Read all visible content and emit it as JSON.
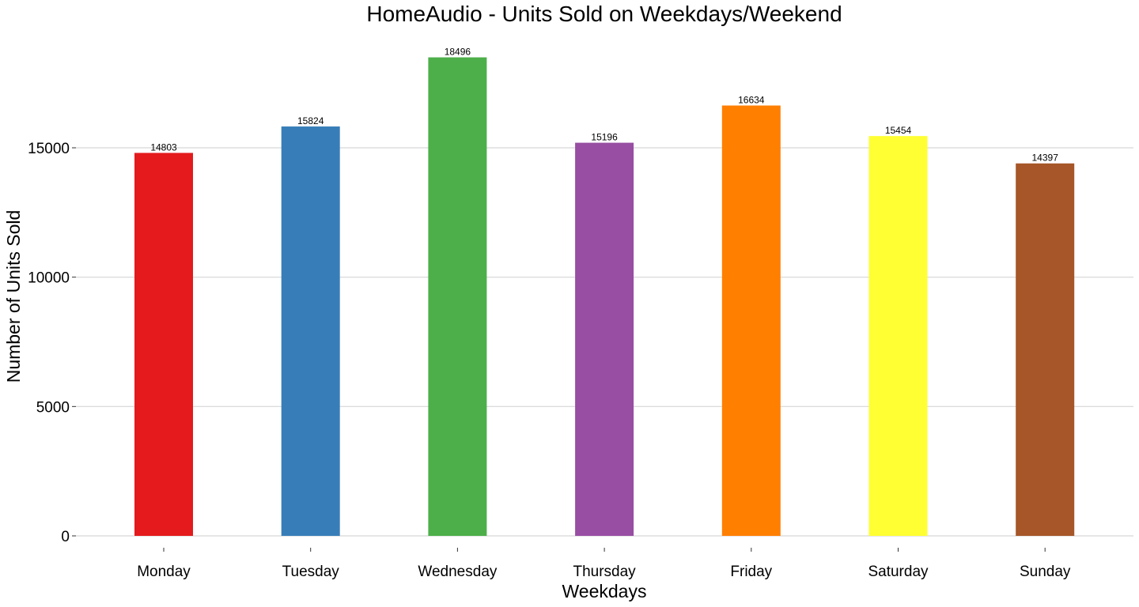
{
  "chart_data": {
    "type": "bar",
    "title": "HomeAudio - Units Sold on Weekdays/Weekend",
    "xlabel": "Weekdays",
    "ylabel": "Number of Units Sold",
    "categories": [
      "Monday",
      "Tuesday",
      "Wednesday",
      "Thursday",
      "Friday",
      "Saturday",
      "Sunday"
    ],
    "values": [
      14803,
      15824,
      18496,
      15196,
      16634,
      15454,
      14397
    ],
    "data_labels": [
      "14803",
      "15824",
      "18496",
      "15196",
      "16634",
      "15454",
      "14397"
    ],
    "colors": [
      "#e41a1c",
      "#377eb8",
      "#4daf4a",
      "#984ea3",
      "#ff7f00",
      "#ffff33",
      "#a65628"
    ],
    "yticks": [
      0,
      5000,
      10000,
      15000
    ],
    "ytick_labels": [
      "0",
      "5000",
      "10000",
      "15000"
    ],
    "ylim": [
      0,
      19000
    ],
    "grid": "horizontal",
    "legend": "none"
  }
}
